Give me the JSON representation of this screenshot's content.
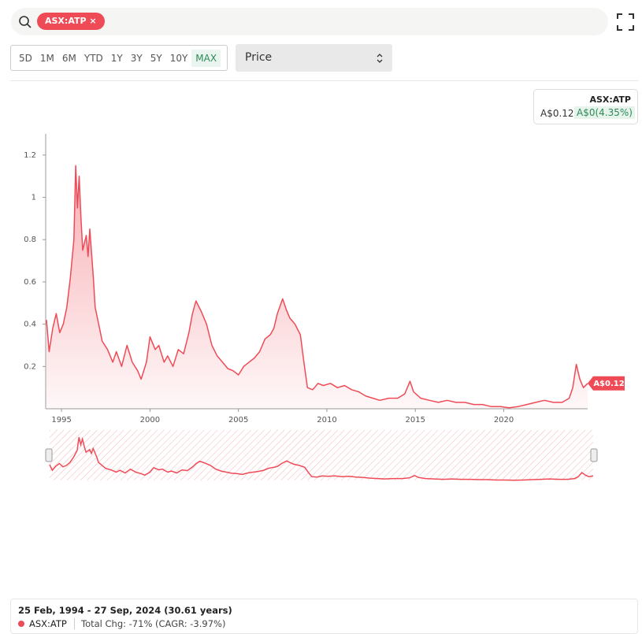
{
  "search": {
    "tag": "ASX:ATP"
  },
  "ranges": [
    "5D",
    "1M",
    "6M",
    "YTD",
    "1Y",
    "3Y",
    "5Y",
    "10Y",
    "MAX"
  ],
  "select": "Price",
  "legend": {
    "name": "ASX:ATP",
    "price": "A$0.12",
    "change": "A$0(4.35%)"
  },
  "price_tag": "A$0.12",
  "footer": {
    "range": "25 Feb, 1994 - 27 Sep, 2024 (30.61 years)",
    "symbol": "ASX:ATP",
    "change": "Total Chg: -71% (CAGR: -3.97%)"
  },
  "chart_data": {
    "type": "line",
    "x": [
      1994.15,
      1994.3,
      1994.5,
      1994.7,
      1994.9,
      1995.1,
      1995.3,
      1995.5,
      1995.7,
      1995.8,
      1995.9,
      1996.0,
      1996.1,
      1996.2,
      1996.4,
      1996.5,
      1996.6,
      1996.8,
      1996.9,
      1997.1,
      1997.3,
      1997.6,
      1997.9,
      1998.1,
      1998.4,
      1998.7,
      1999.0,
      1999.3,
      1999.5,
      1999.8,
      2000.0,
      2000.3,
      2000.5,
      2000.8,
      2001.0,
      2001.3,
      2001.6,
      2001.9,
      2002.2,
      2002.4,
      2002.6,
      2002.9,
      2003.2,
      2003.5,
      2003.8,
      2004.1,
      2004.4,
      2004.7,
      2005.0,
      2005.3,
      2005.6,
      2005.9,
      2006.2,
      2006.5,
      2006.8,
      2007.0,
      2007.2,
      2007.5,
      2007.7,
      2007.9,
      2008.2,
      2008.5,
      2008.7,
      2008.9,
      2009.2,
      2009.5,
      2009.8,
      2010.2,
      2010.6,
      2011.0,
      2011.4,
      2011.8,
      2012.2,
      2012.6,
      2013.0,
      2013.5,
      2014.0,
      2014.4,
      2014.7,
      2014.9,
      2015.3,
      2015.8,
      2016.3,
      2016.8,
      2017.3,
      2017.8,
      2018.3,
      2018.8,
      2019.3,
      2019.8,
      2020.3,
      2020.8,
      2021.3,
      2021.8,
      2022.3,
      2022.8,
      2023.3,
      2023.7,
      2023.9,
      2024.1,
      2024.3,
      2024.5,
      2024.74
    ],
    "series": [
      {
        "name": "ASX:ATP",
        "color": "#ef4b57",
        "values": [
          0.42,
          0.27,
          0.38,
          0.45,
          0.36,
          0.4,
          0.48,
          0.62,
          0.8,
          1.15,
          0.95,
          1.1,
          0.9,
          0.75,
          0.82,
          0.72,
          0.85,
          0.62,
          0.48,
          0.4,
          0.32,
          0.28,
          0.22,
          0.27,
          0.2,
          0.3,
          0.22,
          0.18,
          0.14,
          0.22,
          0.34,
          0.28,
          0.3,
          0.22,
          0.25,
          0.2,
          0.28,
          0.26,
          0.36,
          0.45,
          0.51,
          0.46,
          0.4,
          0.3,
          0.25,
          0.22,
          0.19,
          0.18,
          0.16,
          0.2,
          0.22,
          0.24,
          0.27,
          0.33,
          0.35,
          0.38,
          0.45,
          0.52,
          0.47,
          0.43,
          0.4,
          0.35,
          0.22,
          0.1,
          0.09,
          0.12,
          0.11,
          0.12,
          0.1,
          0.11,
          0.09,
          0.08,
          0.06,
          0.05,
          0.04,
          0.05,
          0.05,
          0.07,
          0.13,
          0.08,
          0.05,
          0.04,
          0.03,
          0.04,
          0.03,
          0.03,
          0.02,
          0.02,
          0.01,
          0.01,
          0.005,
          0.01,
          0.02,
          0.03,
          0.04,
          0.03,
          0.03,
          0.05,
          0.1,
          0.21,
          0.14,
          0.1,
          0.12
        ]
      }
    ],
    "xlim": [
      1994.15,
      2024.74
    ],
    "xticks": [
      1995,
      2000,
      2005,
      2010,
      2015,
      2020
    ],
    "ylim": [
      0,
      1.3
    ],
    "yticks": [
      0.2,
      0.4,
      0.6,
      0.8,
      1,
      1.2
    ]
  }
}
